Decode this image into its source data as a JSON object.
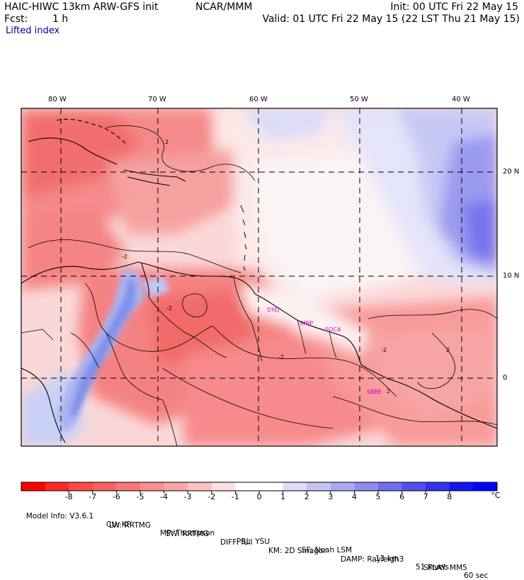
{
  "header": {
    "model_title": "HAIC-HIWC 13km ARW-GFS init",
    "org": "NCAR/MMM",
    "init_time": "Init: 00 UTC Fri 22 May 15",
    "fcst_label": "Fcst:",
    "fcst_value": "1 h",
    "valid_time": "Valid: 01 UTC Fri 22 May 15 (22 LST Thu 21 May 15)",
    "field_name": "Lifted index"
  },
  "map": {
    "lon_labels": [
      "80 W",
      "70 W",
      "60 W",
      "50 W",
      "40 W"
    ],
    "lat_labels": [
      "20 N",
      "10 N",
      "0"
    ],
    "contour_labels": [
      "2",
      "-2",
      "-2",
      "-2",
      "-2",
      "2",
      "2"
    ],
    "stations": [
      "SYEJ",
      "SMJP",
      "SOCA",
      "SBBE"
    ]
  },
  "colorbar": {
    "unit": "°C",
    "colors": [
      "#ff0000",
      "#ff2828",
      "#ff4a4a",
      "#fc6060",
      "#f87878",
      "#f89090",
      "#f8a8a8",
      "#fac3c3",
      "#fde0e0",
      "#ffffff",
      "#ffffff",
      "#dcdcfa",
      "#c3c3f5",
      "#aaaaf2",
      "#8c8cf0",
      "#6e6eee",
      "#5050ee",
      "#3232f0",
      "#1414f4",
      "#0000ff"
    ],
    "labels": [
      "-8",
      "-7",
      "-6",
      "-5",
      "-4",
      "-3",
      "-2",
      "-1",
      "0",
      "1",
      "2",
      "3",
      "4",
      "5",
      "6",
      "7",
      "8"
    ]
  },
  "footer": {
    "line1": [
      "Model Info: V3.6.1",
      "CU: KF",
      "MP: Thompson",
      "PBL: YSU",
      "SF: Noah LSM",
      "13 km",
      "51 levels",
      "60 sec"
    ],
    "line2": [
      "LW: RRTMG",
      "SW: RRTMG",
      "DIFF: full",
      "KM: 2D Smagor",
      "DAMP: Rayleigh3",
      "SFLAY: MM5"
    ]
  }
}
